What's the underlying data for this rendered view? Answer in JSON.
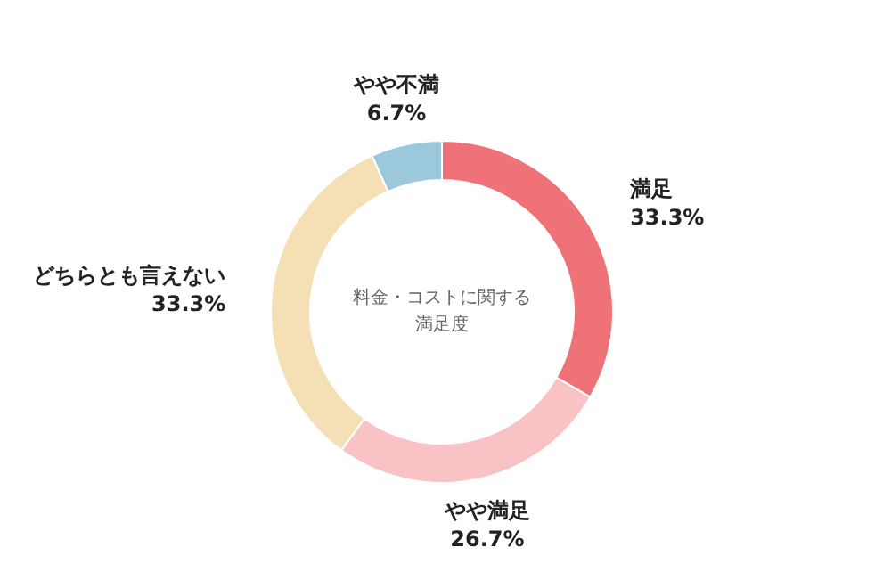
{
  "chart_data": {
    "type": "donut",
    "title": "料金・コストに関する満足度",
    "categories": [
      "満足",
      "やや満足",
      "どちらとも言えない",
      "やや不満"
    ],
    "values": [
      33.3,
      26.7,
      33.3,
      6.7
    ],
    "colors": [
      "#ee7277",
      "#f9c3c6",
      "#f5e0b5",
      "#9cc8dc"
    ],
    "value_labels": [
      "33.3%",
      "26.7%",
      "33.3%",
      "6.7%"
    ]
  }
}
